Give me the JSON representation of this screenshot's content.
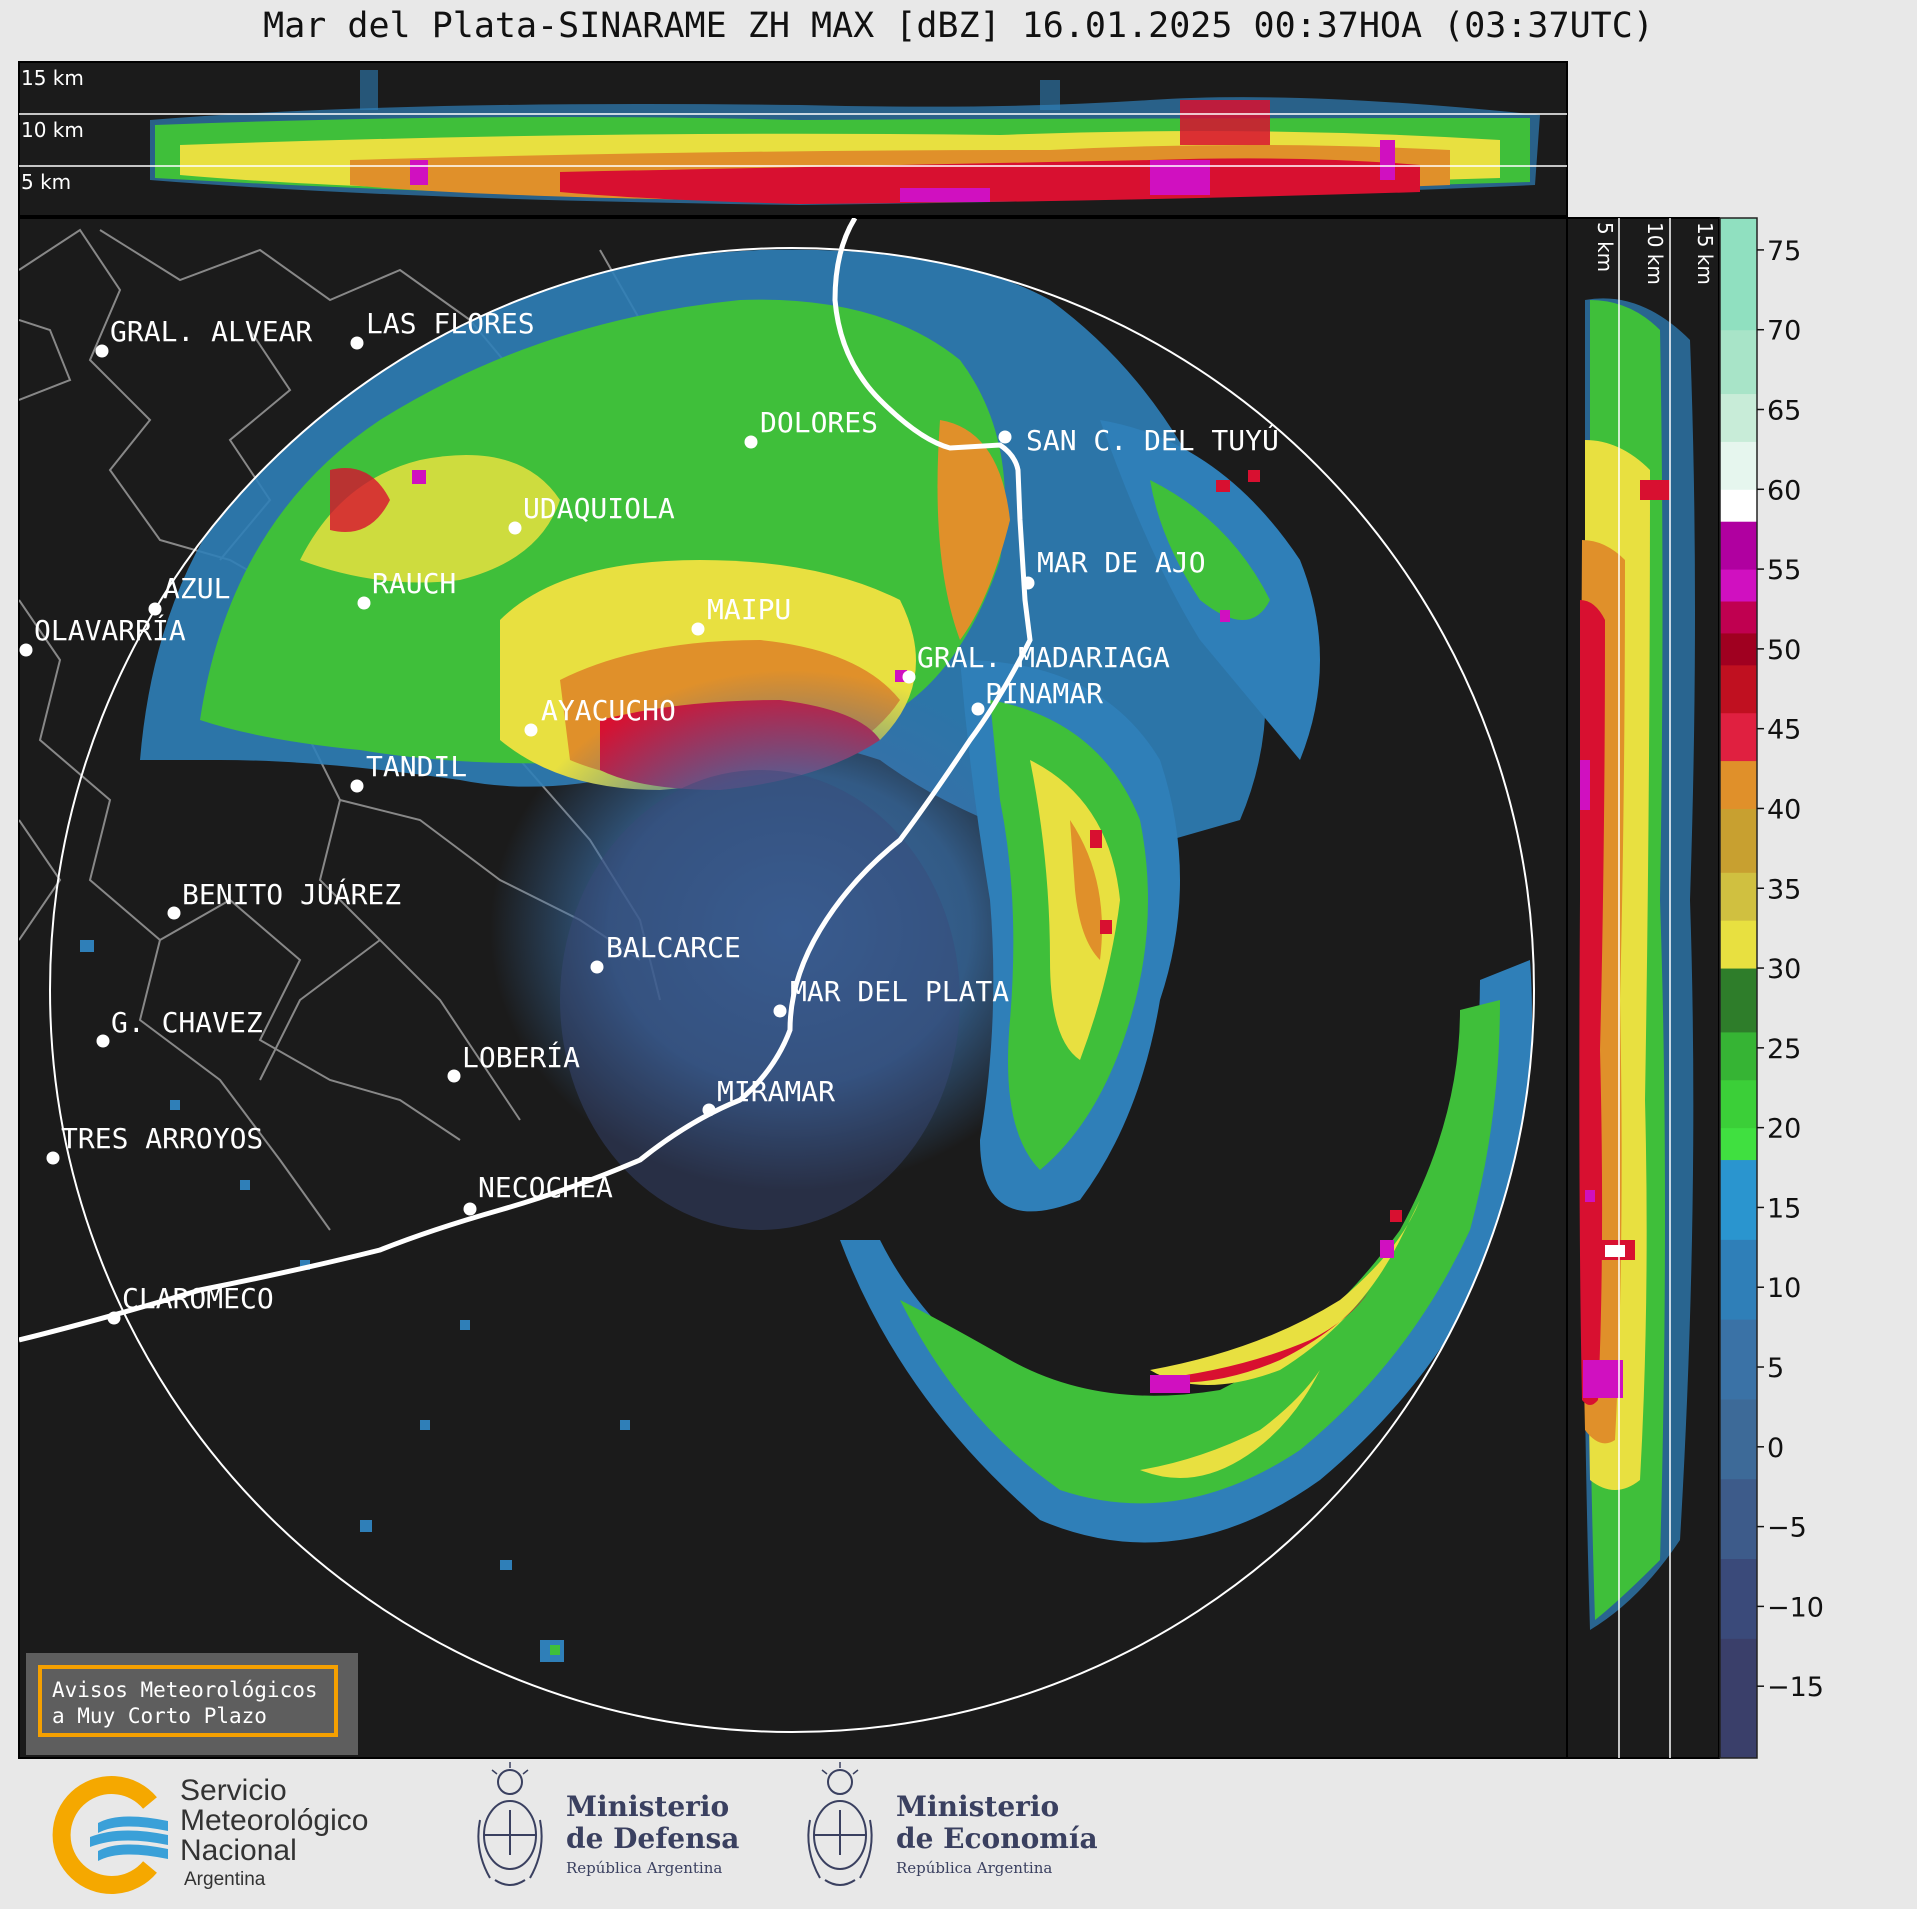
{
  "title": "Mar del Plata-SINARAME ZH MAX [dBZ] 16.01.2025 00:37HOA (03:37UTC)",
  "top_panel": {
    "altitude_labels": [
      "15 km",
      "10 km",
      "5 km"
    ]
  },
  "side_panel": {
    "altitude_labels": [
      "5 km",
      "10 km",
      "15 km"
    ]
  },
  "colorbar": {
    "ticks": [
      "75",
      "70",
      "65",
      "60",
      "55",
      "50",
      "45",
      "40",
      "35",
      "30",
      "25",
      "20",
      "15",
      "10",
      "5",
      "0",
      "−5",
      "−10",
      "−15"
    ],
    "colors": {
      "below_0": "#3a4a7a",
      "blue": "#2f7fb8",
      "green": "#3fbf3a",
      "yellow": "#e8e040",
      "orange": "#e0902a",
      "red": "#d81030",
      "magenta": "#d010c0",
      "white": "#ffffff",
      "mint": "#90e0c0"
    }
  },
  "cities": [
    {
      "name": "GRAL. ALVEAR"
    },
    {
      "name": "LAS FLORES"
    },
    {
      "name": "DOLORES"
    },
    {
      "name": "SAN C. DEL TUYÚ"
    },
    {
      "name": "UDAQUIOLA"
    },
    {
      "name": "MAR DE AJO"
    },
    {
      "name": "AZUL"
    },
    {
      "name": "RAUCH"
    },
    {
      "name": "MAIPU"
    },
    {
      "name": "OLAVARRÍA"
    },
    {
      "name": "GRAL. MADARIAGA"
    },
    {
      "name": "PINAMAR"
    },
    {
      "name": "AYACUCHO"
    },
    {
      "name": "TANDIL"
    },
    {
      "name": "BENITO JUÁREZ"
    },
    {
      "name": "BALCARCE"
    },
    {
      "name": "MAR DEL PLATA"
    },
    {
      "name": "G. CHAVEZ"
    },
    {
      "name": "LOBERÍA"
    },
    {
      "name": "MIRAMAR"
    },
    {
      "name": "TRES ARROYOS"
    },
    {
      "name": "NECOCHEA"
    },
    {
      "name": "CLAROMECO"
    }
  ],
  "warning_box": {
    "line1": "Avisos Meteorológicos",
    "line2": "a Muy Corto Plazo"
  },
  "logos": {
    "smn": {
      "line1": "Servicio",
      "line2": "Meteorológico",
      "line3": "Nacional",
      "line4": "Argentina"
    },
    "defensa": {
      "line1": "Ministerio",
      "line2": "de Defensa",
      "line3": "República Argentina"
    },
    "economia": {
      "line1": "Ministerio",
      "line2": "de Economía",
      "line3": "República Argentina"
    }
  }
}
